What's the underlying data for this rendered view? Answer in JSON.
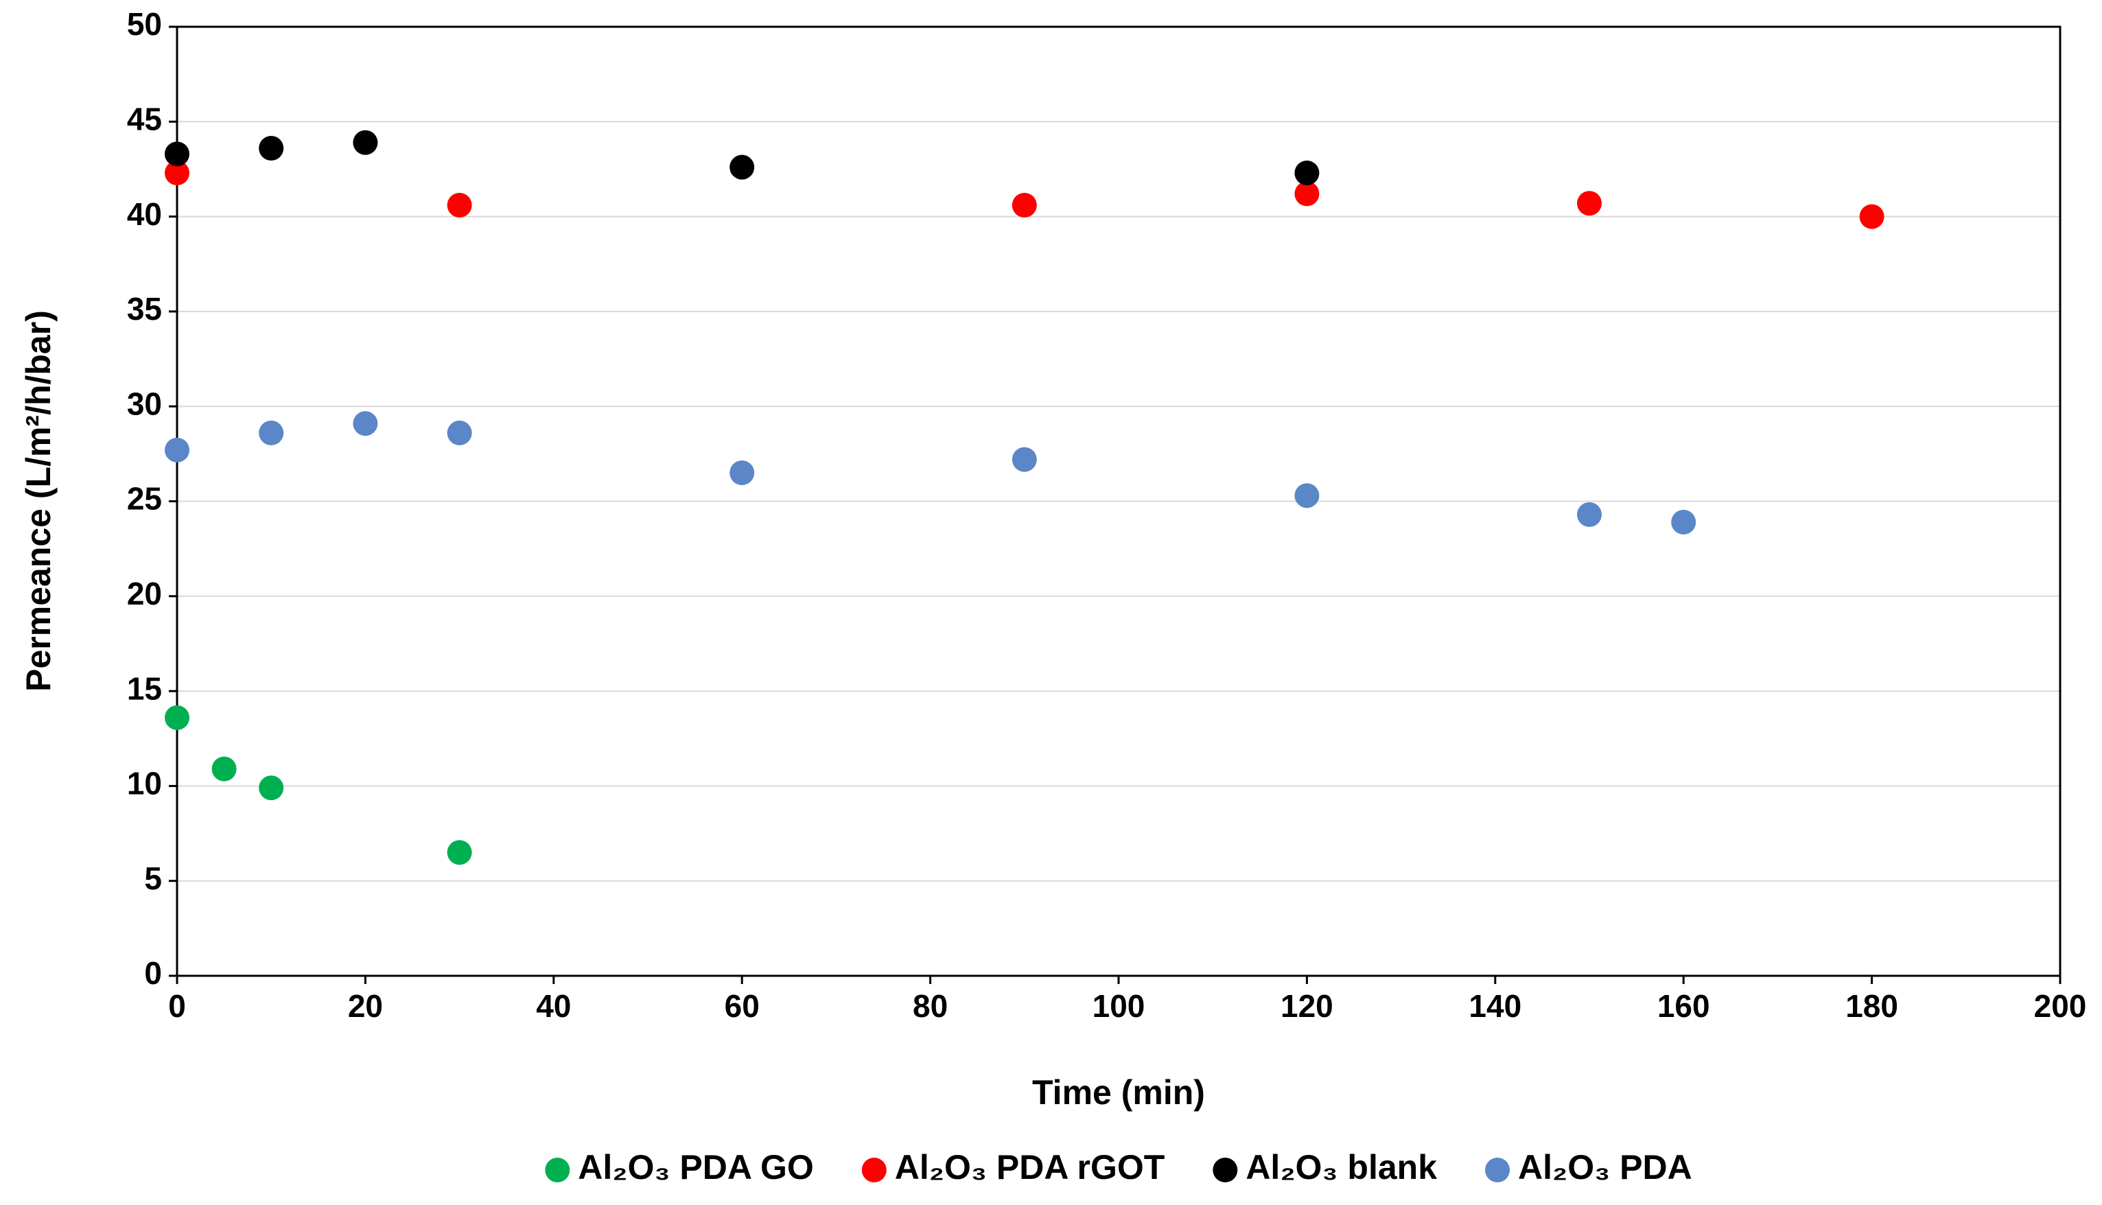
{
  "chart_data": {
    "type": "scatter",
    "x_label": "Time (min)",
    "y_label": "Permeance (L/m²/h/bar)",
    "xlim": [
      0,
      200
    ],
    "xticks": [
      0,
      20,
      40,
      60,
      80,
      100,
      120,
      140,
      160,
      180,
      200
    ],
    "ylim": [
      0,
      50
    ],
    "yticks": [
      0,
      5,
      10,
      15,
      20,
      25,
      30,
      35,
      40,
      45,
      50
    ],
    "grid": true,
    "legend": "bottom",
    "series": [
      {
        "name": "Al₂O₃ PDA GO",
        "color": "#00b050",
        "x": [
          0,
          5,
          10,
          30
        ],
        "values": [
          13.6,
          10.9,
          9.9,
          6.5
        ]
      },
      {
        "name": "Al₂O₃ PDA rGOT",
        "color": "#ff0000",
        "x": [
          0,
          30,
          90,
          120,
          150,
          180
        ],
        "values": [
          42.3,
          40.6,
          40.6,
          41.2,
          40.7,
          40.0
        ]
      },
      {
        "name": "Al₂O₃ blank",
        "color": "#000000",
        "x": [
          0,
          10,
          20,
          60,
          120
        ],
        "values": [
          43.3,
          43.6,
          43.9,
          42.6,
          42.3
        ]
      },
      {
        "name": "Al₂O₃ PDA",
        "color": "#5b87c8",
        "x": [
          0,
          10,
          20,
          30,
          60,
          90,
          120,
          150,
          160
        ],
        "values": [
          27.7,
          28.6,
          29.1,
          28.6,
          26.5,
          27.2,
          25.3,
          24.3,
          23.9
        ]
      }
    ]
  }
}
